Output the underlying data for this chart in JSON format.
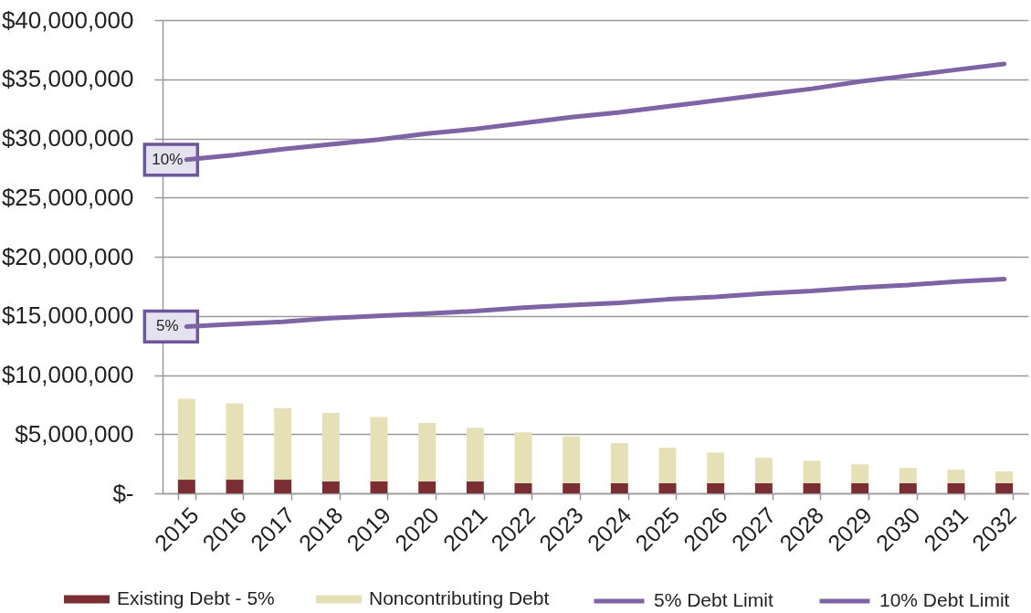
{
  "chart_data": {
    "type": "bar",
    "stacked": true,
    "categories": [
      "2015",
      "2016",
      "2017",
      "2018",
      "2019",
      "2020",
      "2021",
      "2022",
      "2023",
      "2024",
      "2025",
      "2026",
      "2027",
      "2028",
      "2029",
      "2030",
      "2031",
      "2032"
    ],
    "series": [
      {
        "name": "Existing Debt - 5%",
        "color": "#7b2d34",
        "values": [
          1150000,
          1150000,
          1150000,
          1000000,
          1000000,
          1000000,
          1000000,
          850000,
          850000,
          850000,
          850000,
          850000,
          850000,
          850000,
          850000,
          850000,
          850000,
          850000
        ]
      },
      {
        "name": "Noncontributing Debt",
        "color": "#e6e0b6",
        "values": [
          6850000,
          6450000,
          6050000,
          5800000,
          5450000,
          4950000,
          4550000,
          4300000,
          3950000,
          3400000,
          3000000,
          2600000,
          2150000,
          1900000,
          1600000,
          1300000,
          1150000,
          1000000
        ]
      },
      {
        "name": "5% Debt Limit",
        "type": "line",
        "color": "#7e63a5",
        "values": [
          14100000,
          14300000,
          14500000,
          14800000,
          15000000,
          15200000,
          15400000,
          15700000,
          15900000,
          16100000,
          16400000,
          16600000,
          16900000,
          17100000,
          17400000,
          17600000,
          17900000,
          18100000
        ]
      },
      {
        "name": "10% Debt Limit",
        "type": "line",
        "color": "#7e63a5",
        "values": [
          28200000,
          28600000,
          29100000,
          29500000,
          29900000,
          30400000,
          30800000,
          31300000,
          31800000,
          32200000,
          32700000,
          33200000,
          33700000,
          34200000,
          34800000,
          35300000,
          35800000,
          36300000
        ]
      }
    ],
    "ylim": [
      0,
      40000000
    ],
    "yticks": [
      {
        "value": 0,
        "label": "$-"
      },
      {
        "value": 5000000,
        "label": "$5,000,000"
      },
      {
        "value": 10000000,
        "label": "$10,000,000"
      },
      {
        "value": 15000000,
        "label": "$15,000,000"
      },
      {
        "value": 20000000,
        "label": "$20,000,000"
      },
      {
        "value": 25000000,
        "label": "$25,000,000"
      },
      {
        "value": 30000000,
        "label": "$30,000,000"
      },
      {
        "value": 35000000,
        "label": "$35,000,000"
      },
      {
        "value": 40000000,
        "label": "$40,000,000"
      }
    ],
    "grid": "y",
    "legend": "bottom",
    "annotations": [
      {
        "text": "10%",
        "x": "2015",
        "y": 28200000
      },
      {
        "text": "5%",
        "x": "2015",
        "y": 14100000
      }
    ]
  }
}
